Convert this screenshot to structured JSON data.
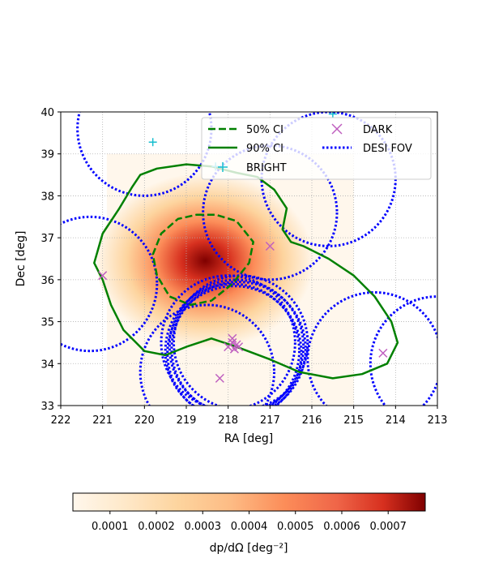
{
  "chart_data": {
    "type": "heatmap",
    "xlabel": "RA [deg]",
    "ylabel": "Dec [deg]",
    "xlim": [
      222,
      213
    ],
    "ylim": [
      33,
      40
    ],
    "x_ticks": [
      "222",
      "221",
      "220",
      "219",
      "218",
      "217",
      "216",
      "215",
      "214",
      "213"
    ],
    "y_ticks": [
      "33",
      "34",
      "35",
      "36",
      "37",
      "38",
      "39",
      "40"
    ],
    "grid": true,
    "legend_position": "top-right",
    "legend": {
      "ci50": "50% CI",
      "ci90": "90% CI",
      "bright": "BRIGHT",
      "dark": "DARK",
      "fov": "DESI FOV"
    },
    "colors": {
      "ci": "#008000",
      "fov": "#0000ff",
      "bright": "#17becf",
      "dark": "#bf5fbf"
    },
    "heatmap": {
      "colormap": "OrRd",
      "extent_ra": [
        220.9,
        215.0
      ],
      "extent_dec": [
        33.0,
        39.0
      ],
      "peak_ra": 218.55,
      "peak_dec": 36.45,
      "peak_value": 0.00078
    },
    "ci50": [
      [
        218.75,
        37.55
      ],
      [
        218.3,
        37.55
      ],
      [
        217.8,
        37.4
      ],
      [
        217.4,
        36.9
      ],
      [
        217.5,
        36.4
      ],
      [
        217.9,
        35.9
      ],
      [
        218.4,
        35.5
      ],
      [
        218.9,
        35.4
      ],
      [
        219.4,
        35.6
      ],
      [
        219.7,
        36.1
      ],
      [
        219.8,
        36.6
      ],
      [
        219.6,
        37.1
      ],
      [
        219.2,
        37.45
      ],
      [
        218.75,
        37.55
      ]
    ],
    "ci90": [
      [
        220.1,
        38.5
      ],
      [
        219.7,
        38.65
      ],
      [
        219.0,
        38.75
      ],
      [
        218.4,
        38.7
      ],
      [
        217.8,
        38.55
      ],
      [
        217.3,
        38.45
      ],
      [
        216.9,
        38.15
      ],
      [
        216.6,
        37.7
      ],
      [
        216.7,
        37.2
      ],
      [
        216.5,
        36.9
      ],
      [
        216.2,
        36.8
      ],
      [
        215.6,
        36.5
      ],
      [
        215.0,
        36.1
      ],
      [
        214.5,
        35.6
      ],
      [
        214.1,
        35.0
      ],
      [
        213.95,
        34.5
      ],
      [
        214.2,
        34.0
      ],
      [
        214.8,
        33.75
      ],
      [
        215.5,
        33.65
      ],
      [
        216.3,
        33.8
      ],
      [
        217.0,
        34.1
      ],
      [
        217.8,
        34.4
      ],
      [
        218.4,
        34.6
      ],
      [
        219.0,
        34.4
      ],
      [
        219.5,
        34.2
      ],
      [
        220.0,
        34.3
      ],
      [
        220.5,
        34.8
      ],
      [
        220.8,
        35.4
      ],
      [
        221.0,
        36.0
      ],
      [
        221.2,
        36.4
      ],
      [
        221.0,
        37.1
      ],
      [
        220.6,
        37.7
      ],
      [
        220.3,
        38.2
      ],
      [
        220.1,
        38.5
      ]
    ],
    "bright_targets": [
      [
        219.8,
        39.28
      ],
      [
        218.3,
        38.7
      ],
      [
        215.5,
        39.95
      ]
    ],
    "dark_targets": [
      [
        221.0,
        36.1
      ],
      [
        217.0,
        36.8
      ],
      [
        218.2,
        33.65
      ],
      [
        214.3,
        34.25
      ],
      [
        217.9,
        34.5
      ],
      [
        218.0,
        34.4
      ],
      [
        217.8,
        34.45
      ],
      [
        217.85,
        34.35
      ],
      [
        217.75,
        34.4
      ],
      [
        217.9,
        34.6
      ]
    ],
    "fov_circles": [
      [
        220.0,
        39.6
      ],
      [
        221.3,
        35.9
      ],
      [
        217.0,
        37.6
      ],
      [
        215.6,
        38.4
      ],
      [
        217.8,
        34.4
      ],
      [
        217.9,
        34.3
      ],
      [
        217.7,
        34.5
      ],
      [
        218.0,
        34.5
      ],
      [
        217.75,
        34.35
      ],
      [
        217.85,
        34.25
      ],
      [
        218.5,
        33.8
      ],
      [
        214.5,
        34.1
      ],
      [
        213.0,
        34.0
      ]
    ]
  },
  "colorbar": {
    "ticks": [
      "0.0001",
      "0.0002",
      "0.0003",
      "0.0004",
      "0.0005",
      "0.0006",
      "0.0007"
    ],
    "label": "dp/dΩ [deg⁻²]",
    "vmin": 2e-05,
    "vmax": 0.00078
  }
}
